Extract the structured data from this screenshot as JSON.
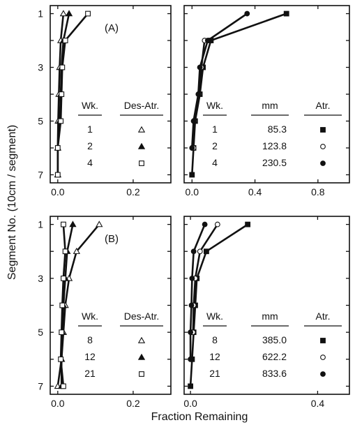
{
  "figure": {
    "ylabel": "Segment No. (10cm / segment)",
    "xlabel": "Fraction Remaining"
  },
  "chart_data": [
    {
      "type": "line",
      "panel": "top-left",
      "label": "(A)",
      "xlim": [
        -0.02,
        0.3
      ],
      "x_ticks": [
        "0.0",
        "0.2"
      ],
      "ylim": [
        0.7,
        7.3
      ],
      "y_ticks": [
        "1",
        "3",
        "5",
        "7"
      ],
      "legend": {
        "headers": [
          "Wk.",
          "Des-Atr."
        ],
        "rows": [
          [
            "1",
            "△"
          ],
          [
            "2",
            "▲"
          ],
          [
            "4",
            "□"
          ]
        ]
      },
      "series": [
        {
          "marker": "triangle-open",
          "legend_row": 0,
          "points": [
            [
              0.015,
              1
            ],
            [
              0.008,
              2
            ],
            [
              0.005,
              3
            ],
            [
              0.003,
              4
            ],
            [
              0.001,
              5
            ],
            [
              0.0,
              6
            ],
            [
              0.0,
              7
            ]
          ]
        },
        {
          "marker": "triangle-filled",
          "legend_row": 1,
          "points": [
            [
              0.03,
              1
            ],
            [
              0.015,
              2
            ],
            [
              0.01,
              3
            ],
            [
              0.008,
              4
            ],
            [
              0.005,
              5
            ],
            [
              0.0,
              6
            ],
            [
              0.0,
              7
            ]
          ]
        },
        {
          "marker": "square-open",
          "legend_row": 2,
          "points": [
            [
              0.08,
              1
            ],
            [
              0.02,
              2
            ],
            [
              0.012,
              3
            ],
            [
              0.01,
              4
            ],
            [
              0.008,
              5
            ],
            [
              0.0,
              6
            ],
            [
              0.0,
              7
            ]
          ]
        }
      ]
    },
    {
      "type": "line",
      "panel": "top-right",
      "xlim": [
        -0.05,
        1.0
      ],
      "x_ticks": [
        "0.0",
        "0.4",
        "0.8"
      ],
      "ylim": [
        0.7,
        7.3
      ],
      "y_ticks": [
        "1",
        "3",
        "5",
        "7"
      ],
      "legend": {
        "headers": [
          "Wk.",
          "mm",
          "Atr."
        ],
        "rows": [
          [
            "1",
            "85.3",
            "■"
          ],
          [
            "2",
            "123.8",
            "○"
          ],
          [
            "4",
            "230.5",
            "●"
          ]
        ]
      },
      "series": [
        {
          "marker": "square-filled",
          "legend_row": 0,
          "points": [
            [
              0.6,
              1
            ],
            [
              0.12,
              2
            ],
            [
              0.07,
              3
            ],
            [
              0.05,
              4
            ],
            [
              0.02,
              5
            ],
            [
              0.01,
              6
            ],
            [
              0.0,
              7
            ]
          ]
        },
        {
          "marker": "circle-open",
          "legend_row": 1,
          "points": [
            [
              0.08,
              2
            ],
            [
              0.06,
              3
            ],
            [
              0.045,
              4
            ],
            [
              0.015,
              5
            ],
            [
              0.01,
              6
            ]
          ]
        },
        {
          "marker": "circle-filled",
          "legend_row": 2,
          "points": [
            [
              0.35,
              1
            ],
            [
              0.1,
              2
            ],
            [
              0.05,
              3
            ],
            [
              0.04,
              4
            ],
            [
              0.01,
              5
            ],
            [
              0.0,
              6
            ]
          ]
        }
      ]
    },
    {
      "type": "line",
      "panel": "bottom-left",
      "label": "(B)",
      "xlim": [
        -0.02,
        0.3
      ],
      "x_ticks": [
        "0.0",
        "0.2"
      ],
      "ylim": [
        0.7,
        7.3
      ],
      "y_ticks": [
        "1",
        "3",
        "5",
        "7"
      ],
      "legend": {
        "headers": [
          "Wk.",
          "Des-Atr."
        ],
        "rows": [
          [
            "8",
            "△"
          ],
          [
            "12",
            "▲"
          ],
          [
            "21",
            "□"
          ]
        ]
      },
      "series": [
        {
          "marker": "triangle-open",
          "legend_row": 0,
          "points": [
            [
              0.11,
              1
            ],
            [
              0.05,
              2
            ],
            [
              0.03,
              3
            ],
            [
              0.02,
              4
            ],
            [
              0.015,
              5
            ],
            [
              0.01,
              6
            ],
            [
              0.0,
              7
            ]
          ]
        },
        {
          "marker": "triangle-filled",
          "legend_row": 1,
          "points": [
            [
              0.04,
              1
            ],
            [
              0.025,
              2
            ],
            [
              0.02,
              3
            ],
            [
              0.015,
              4
            ],
            [
              0.012,
              5
            ],
            [
              0.01,
              6
            ],
            [
              0.01,
              7
            ]
          ]
        },
        {
          "marker": "square-open",
          "legend_row": 2,
          "points": [
            [
              0.015,
              1
            ],
            [
              0.02,
              2
            ],
            [
              0.015,
              3
            ],
            [
              0.012,
              4
            ],
            [
              0.01,
              5
            ],
            [
              0.008,
              6
            ],
            [
              0.015,
              7
            ]
          ]
        }
      ]
    },
    {
      "type": "line",
      "panel": "bottom-right",
      "xlim": [
        -0.02,
        0.5
      ],
      "x_ticks": [
        "0.0",
        "0.4"
      ],
      "ylim": [
        0.7,
        7.3
      ],
      "y_ticks": [
        "1",
        "3",
        "5",
        "7"
      ],
      "legend": {
        "headers": [
          "Wk.",
          "mm",
          "Atr."
        ],
        "rows": [
          [
            "8",
            "385.0",
            "■"
          ],
          [
            "12",
            "622.2",
            "○"
          ],
          [
            "21",
            "833.6",
            "●"
          ]
        ]
      },
      "series": [
        {
          "marker": "square-filled",
          "legend_row": 0,
          "points": [
            [
              0.18,
              1
            ],
            [
              0.05,
              2
            ],
            [
              0.02,
              3
            ],
            [
              0.015,
              4
            ],
            [
              0.01,
              5
            ],
            [
              0.005,
              6
            ],
            [
              0.0,
              7
            ]
          ]
        },
        {
          "marker": "circle-open",
          "legend_row": 1,
          "points": [
            [
              0.085,
              1
            ],
            [
              0.03,
              2
            ],
            [
              0.015,
              3
            ],
            [
              0.01,
              4
            ],
            [
              0.008,
              5
            ]
          ]
        },
        {
          "marker": "circle-filled",
          "legend_row": 2,
          "points": [
            [
              0.045,
              1
            ],
            [
              0.01,
              2
            ],
            [
              0.005,
              3
            ],
            [
              0.003,
              4
            ],
            [
              0.0,
              5
            ],
            [
              0.0,
              6
            ]
          ]
        }
      ]
    }
  ]
}
